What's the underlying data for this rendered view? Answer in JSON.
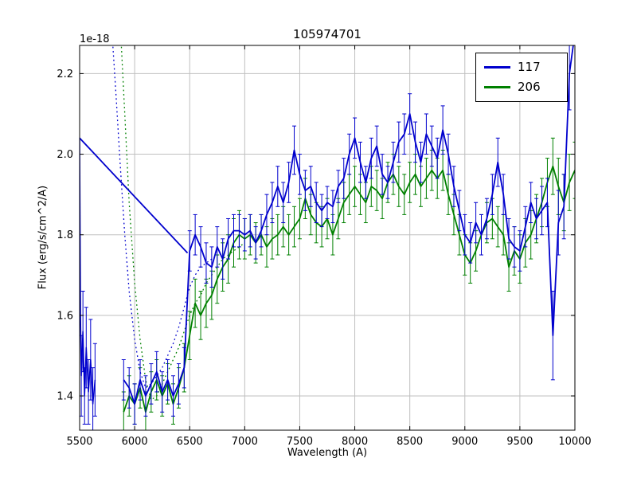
{
  "chart_data": {
    "type": "line",
    "title": "105974701",
    "xlabel": "Wavelength (A)",
    "ylabel": "Flux (erg/s/cm^2/A)",
    "y_offset_label": "1e-18",
    "xlim": [
      5500,
      10000
    ],
    "ylim": [
      1.315,
      2.27
    ],
    "xticks": [
      5500,
      6000,
      6500,
      7000,
      7500,
      8000,
      8500,
      9000,
      9500,
      10000
    ],
    "xtick_labels": [
      "5500",
      "6000",
      "6500",
      "7000",
      "7500",
      "8000",
      "8500",
      "9000",
      "9500",
      "10000"
    ],
    "yticks": [
      1.4,
      1.6,
      1.8,
      2.0,
      2.2
    ],
    "ytick_labels": [
      "1.4",
      "1.6",
      "1.8",
      "2.0",
      "2.2"
    ],
    "grid": true,
    "grid_color": "#bfbfbf",
    "background_color": "#ffffff",
    "legend": {
      "position": "upper right",
      "entries": [
        {
          "label": "117",
          "color": "#0000cd"
        },
        {
          "label": "206",
          "color": "#008000"
        }
      ]
    },
    "series": [
      {
        "name": "117-contamination-dotted",
        "color": "#0000cd",
        "style": "dotted",
        "width": 1.3,
        "points": [
          [
            5790,
            2.32,
            0
          ],
          [
            5830,
            2.15,
            0
          ],
          [
            5870,
            1.97,
            0
          ],
          [
            5910,
            1.8,
            0
          ],
          [
            5950,
            1.66,
            0
          ],
          [
            6000,
            1.54,
            0
          ],
          [
            6050,
            1.46,
            0
          ],
          [
            6100,
            1.42,
            0
          ],
          [
            6150,
            1.43,
            0
          ],
          [
            6200,
            1.45,
            0
          ],
          [
            6250,
            1.47,
            0
          ],
          [
            6300,
            1.5,
            0
          ],
          [
            6350,
            1.53,
            0
          ],
          [
            6400,
            1.57,
            0
          ],
          [
            6450,
            1.62,
            0
          ],
          [
            6500,
            1.67,
            0
          ],
          [
            6550,
            1.7,
            0
          ],
          [
            6600,
            1.72,
            0
          ],
          [
            6650,
            1.73,
            0
          ],
          [
            6700,
            1.74,
            0
          ]
        ]
      },
      {
        "name": "206-contamination-dotted",
        "color": "#008000",
        "style": "dotted",
        "width": 1.3,
        "points": [
          [
            5870,
            2.32,
            0
          ],
          [
            5910,
            2.1,
            0
          ],
          [
            5950,
            1.88,
            0
          ],
          [
            6000,
            1.68,
            0
          ],
          [
            6050,
            1.54,
            0
          ],
          [
            6100,
            1.44,
            0
          ],
          [
            6150,
            1.39,
            0
          ],
          [
            6200,
            1.4,
            0
          ],
          [
            6250,
            1.43,
            0
          ],
          [
            6300,
            1.46,
            0
          ],
          [
            6350,
            1.49,
            0
          ],
          [
            6400,
            1.52,
            0
          ],
          [
            6450,
            1.56,
            0
          ],
          [
            6500,
            1.6,
            0
          ],
          [
            6550,
            1.63,
            0
          ],
          [
            6600,
            1.65,
            0
          ],
          [
            6650,
            1.68,
            0
          ],
          [
            6700,
            1.7,
            0
          ],
          [
            6750,
            1.72,
            0
          ],
          [
            6800,
            1.74,
            0
          ],
          [
            6850,
            1.75,
            0
          ],
          [
            6900,
            1.76,
            0
          ],
          [
            6950,
            1.77,
            0
          ],
          [
            7000,
            1.78,
            0
          ]
        ]
      },
      {
        "name": "206",
        "color": "#008000",
        "style": "solid",
        "width": 1.8,
        "in_legend": true,
        "points": [
          [
            5900,
            1.36,
            0.05
          ],
          [
            5950,
            1.4,
            0.05
          ],
          [
            6000,
            1.38,
            0.05
          ],
          [
            6050,
            1.42,
            0.05
          ],
          [
            6100,
            1.36,
            0.05
          ],
          [
            6150,
            1.41,
            0.05
          ],
          [
            6200,
            1.44,
            0.05
          ],
          [
            6250,
            1.4,
            0.05
          ],
          [
            6300,
            1.43,
            0.05
          ],
          [
            6350,
            1.38,
            0.05
          ],
          [
            6400,
            1.42,
            0.05
          ],
          [
            6450,
            1.47,
            0.06
          ],
          [
            6500,
            1.55,
            0.06
          ],
          [
            6550,
            1.63,
            0.06
          ],
          [
            6600,
            1.6,
            0.06
          ],
          [
            6650,
            1.63,
            0.06
          ],
          [
            6700,
            1.65,
            0.06
          ],
          [
            6750,
            1.69,
            0.06
          ],
          [
            6800,
            1.72,
            0.06
          ],
          [
            6850,
            1.74,
            0.06
          ],
          [
            6900,
            1.78,
            0.06
          ],
          [
            6950,
            1.8,
            0.06
          ],
          [
            7000,
            1.79,
            0.05
          ],
          [
            7050,
            1.8,
            0.05
          ],
          [
            7100,
            1.78,
            0.05
          ],
          [
            7150,
            1.8,
            0.05
          ],
          [
            7200,
            1.77,
            0.05
          ],
          [
            7250,
            1.79,
            0.05
          ],
          [
            7300,
            1.8,
            0.05
          ],
          [
            7350,
            1.82,
            0.05
          ],
          [
            7400,
            1.8,
            0.05
          ],
          [
            7450,
            1.82,
            0.05
          ],
          [
            7500,
            1.84,
            0.05
          ],
          [
            7550,
            1.89,
            0.05
          ],
          [
            7600,
            1.85,
            0.05
          ],
          [
            7650,
            1.83,
            0.05
          ],
          [
            7700,
            1.82,
            0.05
          ],
          [
            7750,
            1.84,
            0.05
          ],
          [
            7800,
            1.8,
            0.05
          ],
          [
            7850,
            1.84,
            0.05
          ],
          [
            7900,
            1.88,
            0.05
          ],
          [
            7950,
            1.9,
            0.05
          ],
          [
            8000,
            1.92,
            0.05
          ],
          [
            8050,
            1.9,
            0.05
          ],
          [
            8100,
            1.88,
            0.05
          ],
          [
            8150,
            1.92,
            0.05
          ],
          [
            8200,
            1.91,
            0.05
          ],
          [
            8250,
            1.89,
            0.05
          ],
          [
            8300,
            1.93,
            0.05
          ],
          [
            8350,
            1.95,
            0.05
          ],
          [
            8400,
            1.92,
            0.05
          ],
          [
            8450,
            1.9,
            0.05
          ],
          [
            8500,
            1.93,
            0.05
          ],
          [
            8550,
            1.95,
            0.05
          ],
          [
            8600,
            1.92,
            0.05
          ],
          [
            8650,
            1.94,
            0.05
          ],
          [
            8700,
            1.96,
            0.05
          ],
          [
            8750,
            1.94,
            0.05
          ],
          [
            8800,
            1.96,
            0.05
          ],
          [
            8850,
            1.9,
            0.05
          ],
          [
            8900,
            1.85,
            0.05
          ],
          [
            8950,
            1.8,
            0.05
          ],
          [
            9000,
            1.75,
            0.05
          ],
          [
            9050,
            1.73,
            0.05
          ],
          [
            9100,
            1.76,
            0.05
          ],
          [
            9150,
            1.8,
            0.05
          ],
          [
            9200,
            1.83,
            0.05
          ],
          [
            9250,
            1.84,
            0.05
          ],
          [
            9300,
            1.82,
            0.05
          ],
          [
            9350,
            1.8,
            0.05
          ],
          [
            9400,
            1.72,
            0.06
          ],
          [
            9450,
            1.76,
            0.06
          ],
          [
            9500,
            1.74,
            0.06
          ],
          [
            9550,
            1.78,
            0.06
          ],
          [
            9600,
            1.8,
            0.06
          ],
          [
            9650,
            1.84,
            0.06
          ],
          [
            9700,
            1.88,
            0.06
          ],
          [
            9750,
            1.93,
            0.06
          ],
          [
            9800,
            1.97,
            0.07
          ],
          [
            9850,
            1.92,
            0.07
          ],
          [
            9900,
            1.88,
            0.07
          ],
          [
            9950,
            1.93,
            0.07
          ],
          [
            10000,
            1.96,
            0.07
          ]
        ]
      },
      {
        "name": "117-left-edge",
        "color": "#0000cd",
        "style": "solid",
        "width": 1.5,
        "points": [
          [
            5500,
            2.04,
            0
          ],
          [
            5508,
            1.6,
            0
          ],
          [
            5515,
            1.45,
            0.1
          ],
          [
            5530,
            1.56,
            0.1
          ],
          [
            5545,
            1.4,
            0.07
          ],
          [
            5560,
            1.52,
            0.1
          ],
          [
            5580,
            1.41,
            0.08
          ],
          [
            5600,
            1.49,
            0.1
          ],
          [
            5620,
            1.38,
            0.09
          ],
          [
            5640,
            1.44,
            0.09
          ]
        ]
      },
      {
        "name": "117-interpolated-gap",
        "color": "#0000cd",
        "style": "solid",
        "width": 1.8,
        "points": [
          [
            5500,
            2.04,
            0
          ],
          [
            6480,
            1.755,
            0
          ]
        ]
      },
      {
        "name": "117",
        "color": "#0000cd",
        "style": "solid",
        "width": 1.8,
        "in_legend": true,
        "points": [
          [
            5900,
            1.44,
            0.05
          ],
          [
            5950,
            1.42,
            0.05
          ],
          [
            6000,
            1.38,
            0.05
          ],
          [
            6050,
            1.44,
            0.05
          ],
          [
            6100,
            1.4,
            0.05
          ],
          [
            6150,
            1.43,
            0.05
          ],
          [
            6200,
            1.46,
            0.05
          ],
          [
            6250,
            1.41,
            0.05
          ],
          [
            6300,
            1.44,
            0.05
          ],
          [
            6350,
            1.4,
            0.05
          ],
          [
            6400,
            1.43,
            0.05
          ],
          [
            6450,
            1.47,
            0.05
          ],
          [
            6500,
            1.76,
            0.05
          ],
          [
            6550,
            1.8,
            0.05
          ],
          [
            6600,
            1.77,
            0.05
          ],
          [
            6650,
            1.73,
            0.05
          ],
          [
            6700,
            1.72,
            0.05
          ],
          [
            6750,
            1.77,
            0.05
          ],
          [
            6800,
            1.74,
            0.05
          ],
          [
            6850,
            1.79,
            0.05
          ],
          [
            6900,
            1.81,
            0.04
          ],
          [
            6950,
            1.81,
            0.04
          ],
          [
            7000,
            1.8,
            0.04
          ],
          [
            7050,
            1.81,
            0.04
          ],
          [
            7100,
            1.78,
            0.04
          ],
          [
            7150,
            1.81,
            0.04
          ],
          [
            7200,
            1.85,
            0.05
          ],
          [
            7250,
            1.88,
            0.05
          ],
          [
            7300,
            1.92,
            0.05
          ],
          [
            7350,
            1.88,
            0.05
          ],
          [
            7400,
            1.93,
            0.05
          ],
          [
            7450,
            2.01,
            0.06
          ],
          [
            7500,
            1.95,
            0.05
          ],
          [
            7550,
            1.91,
            0.05
          ],
          [
            7600,
            1.92,
            0.05
          ],
          [
            7650,
            1.88,
            0.05
          ],
          [
            7700,
            1.86,
            0.04
          ],
          [
            7750,
            1.88,
            0.04
          ],
          [
            7800,
            1.87,
            0.04
          ],
          [
            7850,
            1.92,
            0.04
          ],
          [
            7900,
            1.94,
            0.05
          ],
          [
            7950,
            2.0,
            0.05
          ],
          [
            8000,
            2.04,
            0.05
          ],
          [
            8050,
            1.98,
            0.05
          ],
          [
            8100,
            1.93,
            0.04
          ],
          [
            8150,
            1.99,
            0.05
          ],
          [
            8200,
            2.02,
            0.05
          ],
          [
            8250,
            1.95,
            0.05
          ],
          [
            8300,
            1.93,
            0.04
          ],
          [
            8350,
            1.98,
            0.05
          ],
          [
            8400,
            2.03,
            0.05
          ],
          [
            8450,
            2.05,
            0.05
          ],
          [
            8500,
            2.1,
            0.05
          ],
          [
            8550,
            2.03,
            0.05
          ],
          [
            8600,
            1.98,
            0.05
          ],
          [
            8650,
            2.05,
            0.05
          ],
          [
            8700,
            2.02,
            0.05
          ],
          [
            8750,
            1.99,
            0.05
          ],
          [
            8800,
            2.06,
            0.06
          ],
          [
            8850,
            2.0,
            0.05
          ],
          [
            8900,
            1.92,
            0.05
          ],
          [
            8950,
            1.86,
            0.05
          ],
          [
            9000,
            1.8,
            0.05
          ],
          [
            9050,
            1.78,
            0.05
          ],
          [
            9100,
            1.83,
            0.05
          ],
          [
            9150,
            1.8,
            0.05
          ],
          [
            9200,
            1.84,
            0.05
          ],
          [
            9250,
            1.9,
            0.05
          ],
          [
            9300,
            1.98,
            0.06
          ],
          [
            9350,
            1.9,
            0.05
          ],
          [
            9400,
            1.79,
            0.05
          ],
          [
            9450,
            1.77,
            0.05
          ],
          [
            9500,
            1.76,
            0.05
          ],
          [
            9550,
            1.82,
            0.05
          ],
          [
            9600,
            1.88,
            0.05
          ],
          [
            9650,
            1.84,
            0.05
          ],
          [
            9700,
            1.86,
            0.06
          ],
          [
            9750,
            1.88,
            0.06
          ],
          [
            9800,
            1.55,
            0.11
          ],
          [
            9850,
            1.83,
            0.08
          ],
          [
            9900,
            1.87,
            0.08
          ],
          [
            9950,
            2.2,
            0.09
          ],
          [
            10000,
            2.3,
            0.1
          ]
        ]
      }
    ]
  }
}
